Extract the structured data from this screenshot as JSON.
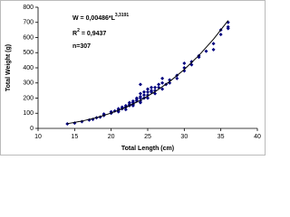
{
  "chart_data": {
    "type": "scatter",
    "x_label": "Total Length (cm)",
    "y_label": "Total Weight (g)",
    "annotations": {
      "equation": "W = 0,00486*L",
      "exponent": "3,3191",
      "r": "R",
      "r_power": "2",
      "r_value": "= 0,9437",
      "n": "n=307"
    },
    "xlim": [
      10,
      40
    ],
    "xticks": [
      10,
      15,
      20,
      25,
      30,
      35,
      40
    ],
    "ylim": [
      0,
      800
    ],
    "yticks": [
      0,
      100,
      200,
      300,
      400,
      500,
      600,
      700,
      800
    ],
    "series": [
      {
        "type": "scatter",
        "color": "#00007f",
        "x": [
          14,
          15,
          16,
          17,
          17.5,
          18,
          18.5,
          19,
          19,
          20,
          20,
          20.5,
          21,
          21,
          21,
          21.5,
          21.5,
          22,
          22,
          22,
          22.5,
          22.5,
          22.5,
          23,
          23,
          23,
          23,
          23.5,
          23.5,
          23.5,
          24,
          24,
          24,
          24,
          24,
          24,
          24.5,
          24.5,
          24.5,
          25,
          25,
          25,
          25,
          25.5,
          25.5,
          25.5,
          26,
          26,
          26,
          26.5,
          26.5,
          27,
          27,
          27,
          27.5,
          28,
          28,
          29,
          29,
          30,
          30,
          30,
          31,
          31,
          32,
          32,
          33,
          34,
          34,
          35,
          35,
          36,
          36,
          36
        ],
        "values": [
          30,
          35,
          45,
          55,
          60,
          70,
          75,
          85,
          95,
          100,
          110,
          115,
          120,
          130,
          110,
          140,
          130,
          140,
          150,
          125,
          150,
          160,
          170,
          160,
          170,
          180,
          150,
          180,
          190,
          200,
          180,
          200,
          210,
          230,
          170,
          290,
          200,
          220,
          240,
          220,
          240,
          260,
          200,
          240,
          250,
          270,
          250,
          270,
          230,
          270,
          290,
          300,
          260,
          330,
          290,
          320,
          300,
          350,
          330,
          400,
          380,
          430,
          420,
          440,
          470,
          480,
          510,
          560,
          520,
          620,
          650,
          670,
          700,
          660
        ]
      },
      {
        "type": "line",
        "color": "#000000",
        "x": [
          14,
          16,
          18,
          20,
          22,
          24,
          26,
          28,
          30,
          32,
          34,
          36
        ],
        "values": [
          31.0,
          48.2,
          71.3,
          101.1,
          138.9,
          185.4,
          241.9,
          309.3,
          388.9,
          481.8,
          589.2,
          712.3
        ]
      }
    ]
  }
}
